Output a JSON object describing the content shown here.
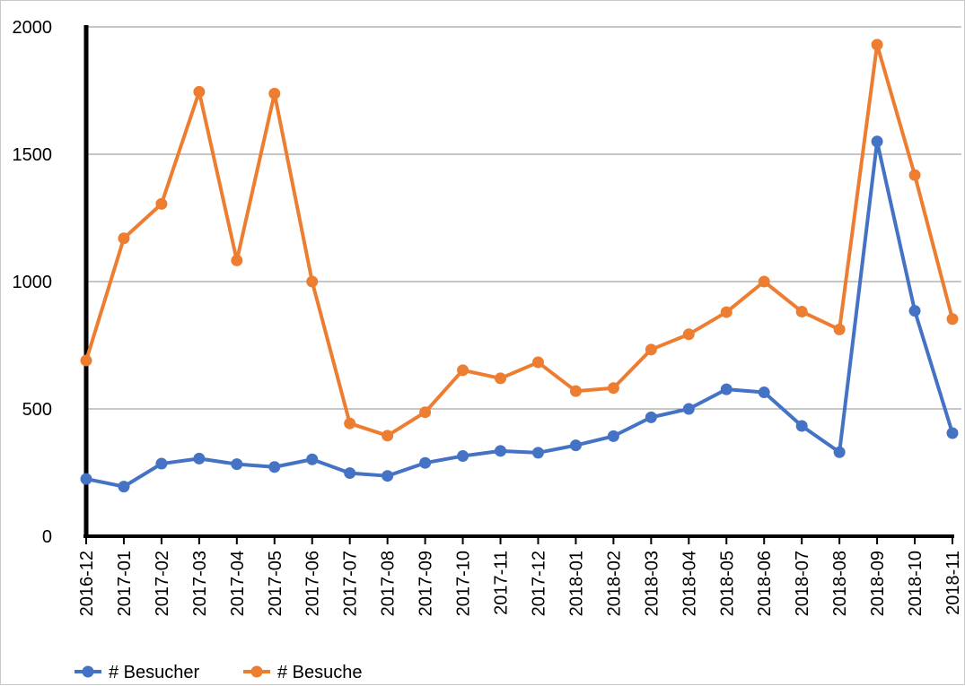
{
  "chart_data": {
    "type": "line",
    "title": "",
    "xlabel": "",
    "ylabel": "",
    "ylim": [
      0,
      2000
    ],
    "yticks": [
      0,
      500,
      1000,
      1500,
      2000
    ],
    "grid": true,
    "legend_position": "bottom-left",
    "categories": [
      "2016-12",
      "2017-01",
      "2017-02",
      "2017-03",
      "2017-04",
      "2017-05",
      "2017-06",
      "2017-07",
      "2017-08",
      "2017-09",
      "2017-10",
      "2017-11",
      "2017-12",
      "2018-01",
      "2018-02",
      "2018-03",
      "2018-04",
      "2018-05",
      "2018-06",
      "2018-07",
      "2018-08",
      "2018-09",
      "2018-10",
      "2018-11"
    ],
    "series": [
      {
        "name": "# Besucher",
        "color": "#4472c4",
        "values": [
          225,
          195,
          285,
          305,
          283,
          272,
          302,
          248,
          237,
          288,
          315,
          335,
          328,
          357,
          393,
          467,
          500,
          577,
          565,
          433,
          330,
          1550,
          885,
          405
        ]
      },
      {
        "name": "# Besuche",
        "color": "#ed7d31",
        "values": [
          690,
          1170,
          1305,
          1745,
          1083,
          1738,
          1000,
          443,
          395,
          487,
          652,
          620,
          683,
          570,
          582,
          733,
          793,
          880,
          1000,
          882,
          812,
          1930,
          1418,
          853
        ]
      }
    ]
  }
}
